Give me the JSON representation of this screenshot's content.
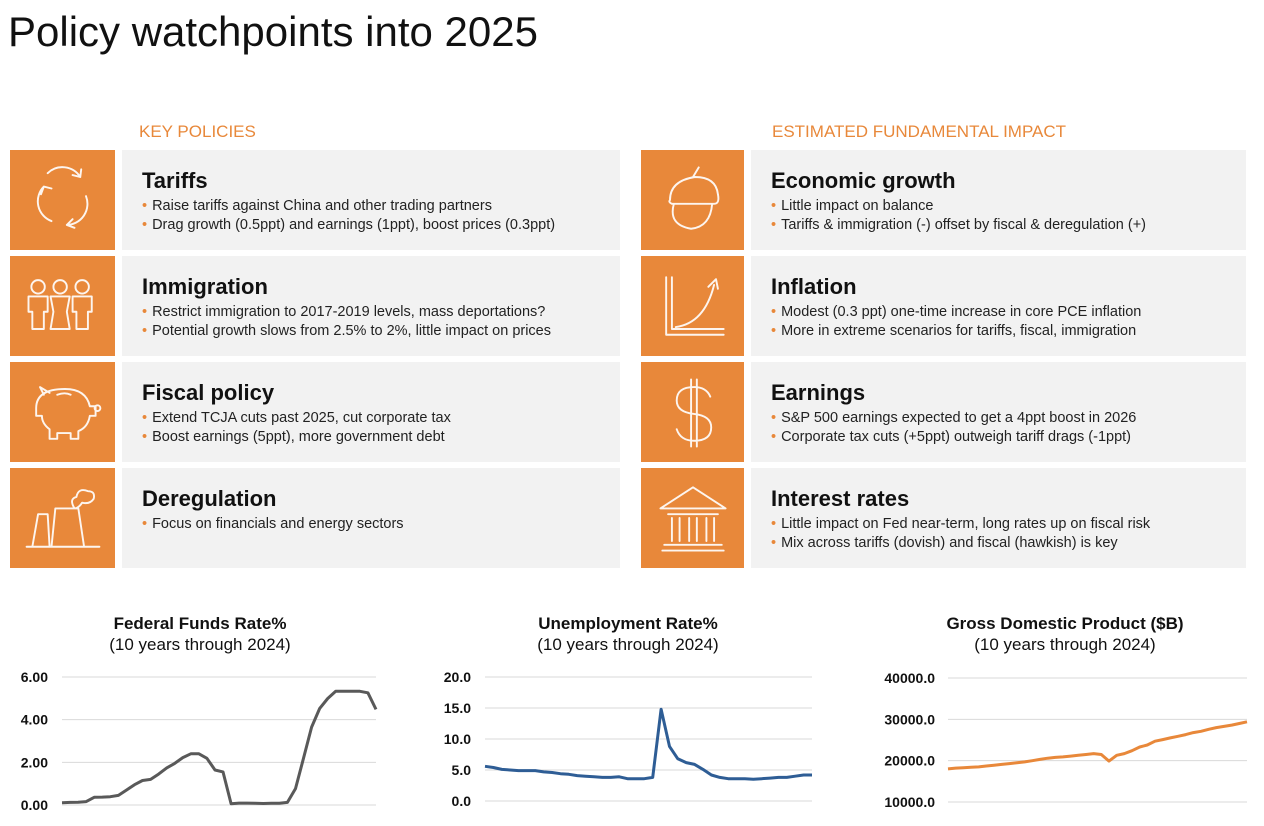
{
  "title": "Policy watchpoints into 2025",
  "left_section": "KEY POLICIES",
  "right_section": "ESTIMATED FUNDAMENTAL IMPACT",
  "accent_color": "#E8883A",
  "policies": [
    {
      "icon": "cycle-arrows-icon",
      "title": "Tariffs",
      "bullets": [
        "Raise tariffs against China and other trading partners",
        "Drag growth (0.5ppt) and earnings (1ppt), boost prices (0.3ppt)"
      ]
    },
    {
      "icon": "people-icon",
      "title": "Immigration",
      "bullets": [
        "Restrict immigration to 2017-2019 levels, mass deportations?",
        "Potential growth slows from 2.5% to 2%, little impact on prices"
      ]
    },
    {
      "icon": "piggy-bank-icon",
      "title": "Fiscal policy",
      "bullets": [
        "Extend TCJA cuts past 2025, cut corporate tax",
        "Boost earnings (5ppt), more government debt"
      ]
    },
    {
      "icon": "factory-icon",
      "title": "Deregulation",
      "bullets": [
        "Focus on financials and energy sectors"
      ]
    }
  ],
  "impacts": [
    {
      "icon": "acorn-icon",
      "title": "Economic growth",
      "bullets": [
        "Little impact on balance",
        "Tariffs & immigration (-) offset by fiscal & deregulation (+)"
      ]
    },
    {
      "icon": "growth-chart-icon",
      "title": "Inflation",
      "bullets": [
        "Modest (0.3 ppt) one-time increase in core PCE inflation",
        "More in extreme scenarios for tariffs, fiscal, immigration"
      ]
    },
    {
      "icon": "dollar-icon",
      "title": "Earnings",
      "bullets": [
        "S&P 500 earnings expected to get a 4ppt boost in 2026",
        "Corporate tax cuts (+5ppt) outweigh tariff drags (-1ppt)"
      ]
    },
    {
      "icon": "bank-icon",
      "title": "Interest rates",
      "bullets": [
        "Little impact on Fed near-term, long rates up on fiscal risk",
        "Mix across tariffs (dovish) and fiscal (hawkish) is key"
      ]
    }
  ],
  "chart_data": [
    {
      "type": "line",
      "title": "Federal Funds Rate%",
      "subtitle": "(10 years through 2024)",
      "color": "#595959",
      "grid": true,
      "ylim": [
        0,
        6
      ],
      "yticks": [
        "0.00",
        "2.00",
        "4.00",
        "6.00"
      ],
      "ytick_values": [
        0,
        2,
        4,
        6
      ],
      "x_period": "quarterly 2015-2024",
      "values": [
        0.11,
        0.12,
        0.13,
        0.16,
        0.36,
        0.37,
        0.39,
        0.45,
        0.7,
        0.95,
        1.15,
        1.2,
        1.45,
        1.74,
        1.95,
        2.22,
        2.4,
        2.4,
        2.19,
        1.64,
        1.55,
        0.06,
        0.09,
        0.09,
        0.08,
        0.07,
        0.08,
        0.08,
        0.12,
        0.77,
        2.19,
        3.65,
        4.52,
        4.99,
        5.33,
        5.33,
        5.33,
        5.33,
        5.26,
        4.48
      ]
    },
    {
      "type": "line",
      "title": "Unemployment Rate%",
      "subtitle": "(10 years through 2024)",
      "color": "#2E5D95",
      "grid": true,
      "ylim": [
        0,
        20
      ],
      "yticks": [
        "0.0",
        "5.0",
        "10.0",
        "15.0",
        "20.0"
      ],
      "ytick_values": [
        0,
        5,
        10,
        15,
        20
      ],
      "x_period": "quarterly 2015-2024",
      "values": [
        5.6,
        5.4,
        5.1,
        5.0,
        4.9,
        4.9,
        4.9,
        4.7,
        4.6,
        4.4,
        4.3,
        4.1,
        4.0,
        3.9,
        3.8,
        3.8,
        3.9,
        3.6,
        3.6,
        3.6,
        3.8,
        14.8,
        8.8,
        6.8,
        6.2,
        5.9,
        5.1,
        4.2,
        3.8,
        3.6,
        3.6,
        3.6,
        3.5,
        3.6,
        3.7,
        3.8,
        3.8,
        4.0,
        4.2,
        4.2
      ]
    },
    {
      "type": "line",
      "title": "Gross Domestic Product ($B)",
      "subtitle": "(10 years through 2024)",
      "color": "#E8883A",
      "grid": true,
      "ylim": [
        10000,
        40000
      ],
      "yticks": [
        "10000.0",
        "20000.0",
        "30000.0",
        "40000.0"
      ],
      "ytick_values": [
        10000,
        20000,
        30000,
        40000
      ],
      "x_period": "quarterly 2015-2024",
      "values": [
        18000,
        18200,
        18300,
        18400,
        18500,
        18700,
        18900,
        19100,
        19300,
        19500,
        19700,
        20000,
        20300,
        20600,
        20800,
        20900,
        21100,
        21300,
        21500,
        21700,
        21500,
        19900,
        21300,
        21700,
        22400,
        23300,
        23800,
        24700,
        25100,
        25500,
        25900,
        26300,
        26800,
        27100,
        27600,
        28000,
        28300,
        28600,
        29000,
        29400
      ]
    }
  ]
}
